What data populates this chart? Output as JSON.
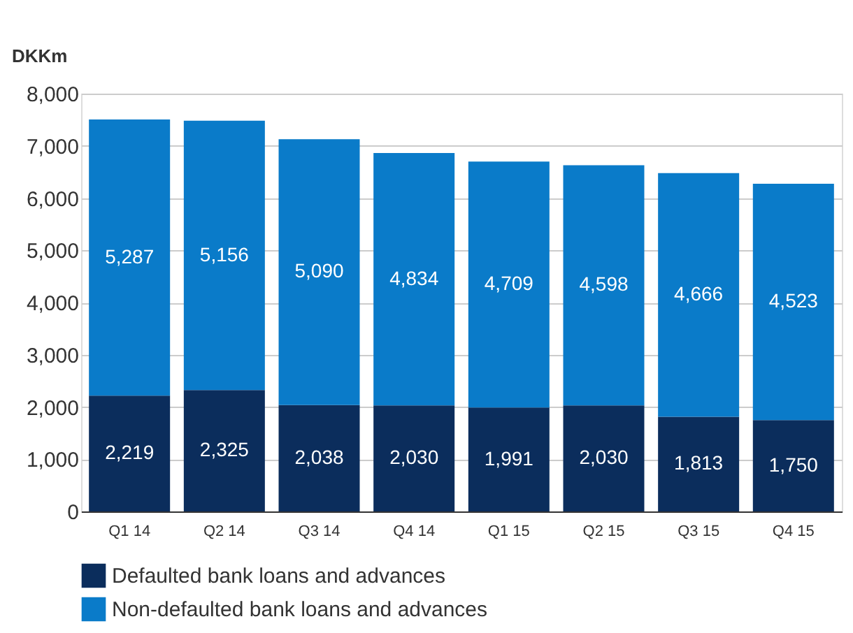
{
  "chart_data": {
    "type": "bar",
    "stacked": true,
    "ylabel": "DKKm",
    "categories": [
      "Q1 14",
      "Q2 14",
      "Q3 14",
      "Q4 14",
      "Q1 15",
      "Q2 15",
      "Q3 15",
      "Q4 15"
    ],
    "series": [
      {
        "name": "Defaulted bank loans and advances",
        "color": "#0b2d5c",
        "values": [
          2219,
          2325,
          2038,
          2030,
          1991,
          2030,
          1813,
          1750
        ],
        "value_labels": [
          "2,219",
          "2,325",
          "2,038",
          "2,030",
          "1,991",
          "2,030",
          "1,813",
          "1,750"
        ]
      },
      {
        "name": "Non-defaulted bank loans and advances",
        "color": "#0a7bc9",
        "values": [
          5287,
          5156,
          5090,
          4834,
          4709,
          4598,
          4666,
          4523
        ],
        "value_labels": [
          "5,287",
          "5,156",
          "5,090",
          "4,834",
          "4,709",
          "4,598",
          "4,666",
          "4,523"
        ]
      }
    ],
    "ylim": [
      0,
      8000
    ],
    "yticks": [
      0,
      {
        "value": 1000,
        "label": "1,000"
      },
      {
        "value": 2000,
        "label": "2,000"
      },
      {
        "value": 3000,
        "label": "3,000"
      },
      {
        "value": 4000,
        "label": "4,000"
      },
      {
        "value": 5000,
        "label": "5,000"
      },
      {
        "value": 6000,
        "label": "6,000"
      },
      {
        "value": 7000,
        "label": "7,000"
      },
      {
        "value": 8000,
        "label": "8,000"
      }
    ],
    "grid": "y",
    "legend": "bottom"
  }
}
